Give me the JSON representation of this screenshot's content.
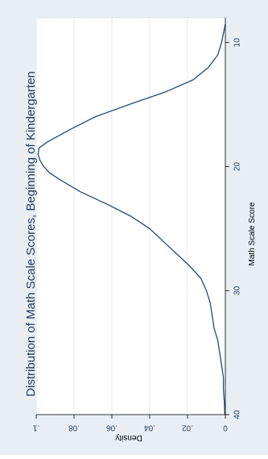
{
  "chart_data": {
    "type": "line",
    "title": "Distribution of Math Scale Scores, Beginning of Kindergarten",
    "xlabel": "Math Scale Score",
    "ylabel": "Density",
    "orientation": "rotated 90° clockwise (x axis runs top-to-bottom on the right, y axis along the bottom)",
    "xlim": [
      8,
      40
    ],
    "ylim": [
      0,
      0.1
    ],
    "x_ticks": [
      10,
      20,
      30,
      40
    ],
    "y_ticks": [
      0,
      0.02,
      0.04,
      0.06,
      0.08,
      0.1
    ],
    "y_tick_labels": [
      "0",
      ".02",
      ".04",
      ".06",
      ".08",
      ".1"
    ],
    "grid": "horizontal-in-original (lines along y ticks)",
    "colors": {
      "page_bg": "#e8eef4",
      "plot_bg": "#ffffff",
      "line": "#1f4e79",
      "grid": "#e6eaee",
      "text": "#1f3b5a"
    },
    "series": [
      {
        "x": [
          8.5,
          10,
          11,
          12,
          13,
          14,
          15,
          16,
          17,
          18,
          18.5,
          19,
          19.5,
          20,
          20.5,
          21,
          22,
          23,
          24,
          25,
          26,
          27,
          28,
          29,
          30,
          31,
          32,
          33,
          34,
          35,
          36,
          37,
          38,
          39,
          40
        ],
        "y": [
          0.0,
          0.002,
          0.004,
          0.009,
          0.017,
          0.032,
          0.051,
          0.069,
          0.082,
          0.094,
          0.0985,
          0.099,
          0.098,
          0.096,
          0.093,
          0.088,
          0.077,
          0.063,
          0.05,
          0.04,
          0.033,
          0.026,
          0.019,
          0.013,
          0.01,
          0.008,
          0.007,
          0.006,
          0.004,
          0.003,
          0.002,
          0.001,
          0.001,
          0.0005,
          0.0003
        ]
      }
    ]
  }
}
